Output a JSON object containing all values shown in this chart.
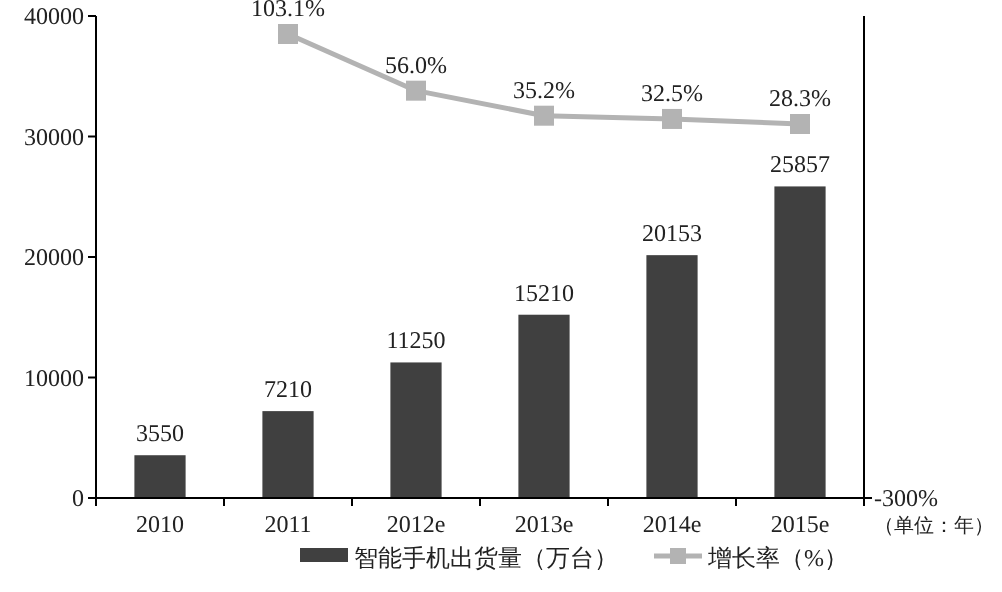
{
  "chart_data": {
    "type": "bar",
    "categories": [
      "2010",
      "2011",
      "2012e",
      "2013e",
      "2014e",
      "2015e"
    ],
    "series": [
      {
        "name": "智能手机出货量（万台）",
        "color": "#404040",
        "values": [
          3550,
          7210,
          11250,
          15210,
          20153,
          25857
        ],
        "value_labels": [
          "3550",
          "7210",
          "11250",
          "15210",
          "20153",
          "25857"
        ]
      },
      {
        "name": "增长率（%）",
        "type": "line",
        "axis": "y2",
        "marker": "square",
        "color": "#b3b3b3",
        "values": [
          null,
          103.1,
          56.0,
          35.2,
          32.5,
          28.3
        ],
        "value_labels": [
          null,
          "103.1%",
          "56.0%",
          "35.2%",
          "32.5%",
          "28.3%"
        ]
      }
    ],
    "ylim": [
      0,
      40000
    ],
    "yticks": [
      0,
      10000,
      20000,
      30000,
      40000
    ],
    "grid": false,
    "legend": "bottom",
    "annotations": [
      "-300%",
      "（单位：年）"
    ]
  }
}
